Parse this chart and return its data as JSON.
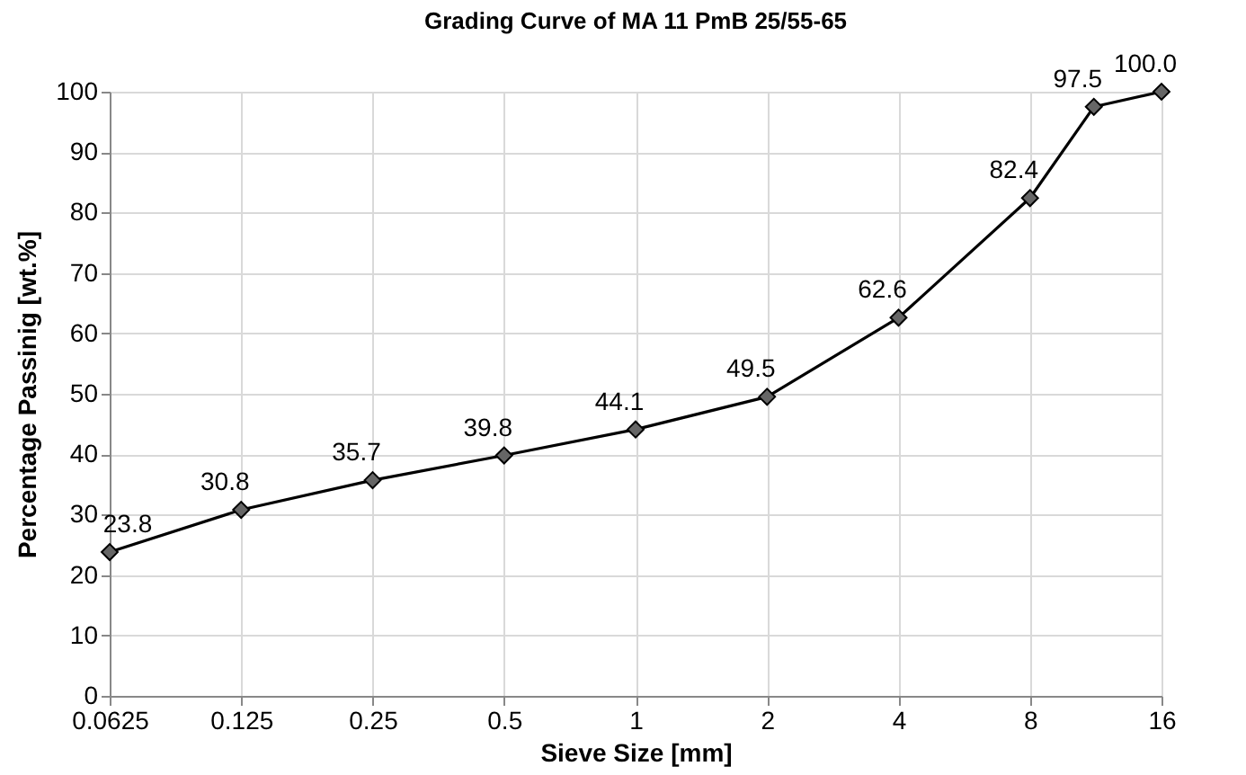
{
  "chart_data": {
    "type": "line",
    "title": "Grading Curve of MA 11 PmB 25/55-65",
    "xlabel": "Sieve Size [mm]",
    "ylabel": "Percentage Passinig [wt.%]",
    "x": [
      0.0625,
      0.125,
      0.25,
      0.5,
      1,
      2,
      4,
      8,
      11.2,
      16
    ],
    "series": [
      {
        "color": "#000000",
        "values": [
          23.8,
          30.8,
          35.7,
          39.8,
          44.1,
          49.5,
          62.6,
          82.4,
          97.5,
          100.0
        ],
        "value_labels": [
          "23.8",
          "30.8",
          "35.7",
          "39.8",
          "44.1",
          "49.5",
          "62.6",
          "82.4",
          "97.5",
          "100.0"
        ]
      }
    ],
    "log": "x",
    "xlim": [
      0.0625,
      16
    ],
    "xticks": [
      0.0625,
      0.125,
      0.25,
      0.5,
      1,
      2,
      4,
      8,
      16
    ],
    "ylim": [
      0,
      100
    ],
    "yticks": [
      0,
      10,
      20,
      30,
      40,
      50,
      60,
      70,
      80,
      90,
      100
    ],
    "grid": true,
    "marker": "diamond",
    "line_style": "solid"
  }
}
